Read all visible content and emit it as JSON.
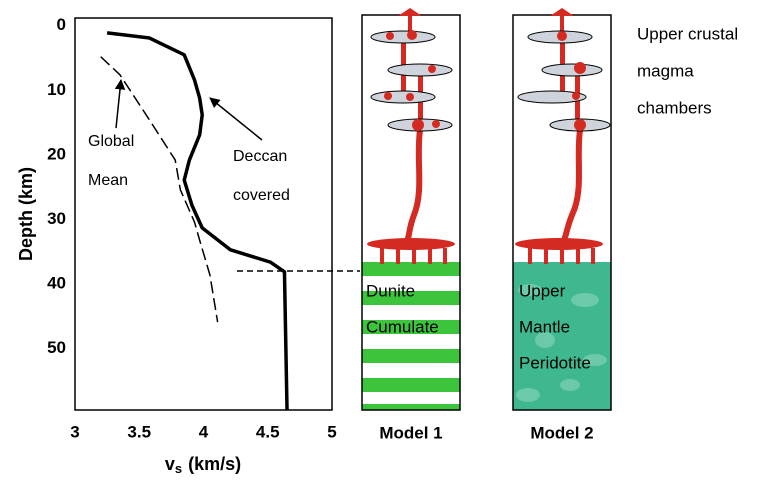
{
  "chart_data": {
    "type": "line",
    "x_label": {
      "symbol": "v",
      "subscript": "s",
      "unit": "(km/s)"
    },
    "y_label": "Depth (km)",
    "xlim": [
      3,
      5
    ],
    "ylim": [
      -1.2,
      59.5
    ],
    "y_inverted": true,
    "xticks": [
      3,
      3.5,
      4,
      4.5,
      5
    ],
    "yticks": [
      0,
      10,
      20,
      30,
      40,
      50
    ],
    "series": [
      {
        "name": "Deccan covered",
        "color": "#000000",
        "style": "solid",
        "x": [
          3.25,
          3.58,
          3.85,
          3.93,
          3.97,
          3.99,
          3.97,
          3.89,
          3.85,
          3.91,
          3.99,
          4.21,
          4.52,
          4.63,
          4.65
        ],
        "values": [
          1.1,
          1.9,
          4.5,
          8.4,
          11.2,
          13.8,
          16.9,
          20.8,
          23.9,
          27.8,
          31.3,
          34.7,
          36.6,
          38.1,
          59.5
        ]
      },
      {
        "name": "Global Mean",
        "color": "#000000",
        "style": "dashed",
        "x": [
          3.2,
          3.35,
          3.58,
          3.78,
          3.82,
          3.93,
          3.97,
          4.05,
          4.11
        ],
        "values": [
          4.8,
          7.6,
          14.6,
          20.8,
          25.4,
          30.4,
          33.2,
          38.6,
          45.9
        ]
      }
    ]
  },
  "diagram": {
    "models": [
      {
        "label": "Model 1",
        "rock": [
          "Dunite",
          "Cumulate"
        ]
      },
      {
        "label": "Model 2",
        "rock": [
          "Upper",
          "Mantle",
          "Peridotite"
        ]
      }
    ],
    "chamber_label": [
      "Upper crustal",
      "magma",
      "chambers"
    ]
  }
}
